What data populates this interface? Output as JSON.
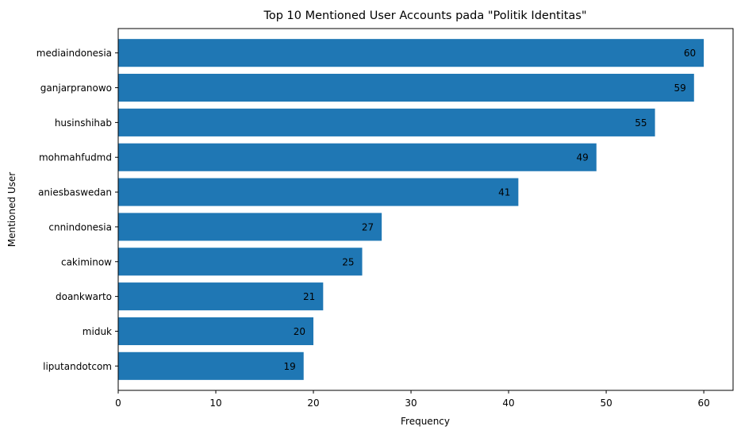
{
  "chart_data": {
    "type": "bar",
    "orientation": "horizontal",
    "title": "Top 10 Mentioned User Accounts pada \"Politik Identitas\"",
    "xlabel": "Frequency",
    "ylabel": "Mentioned User",
    "categories": [
      "mediaindonesia",
      "ganjarpranowo",
      "husinshihab",
      "mohmahfudmd",
      "aniesbaswedan",
      "cnnindonesia",
      "cakiminow",
      "doankwarto",
      "miduk",
      "liputandotcom"
    ],
    "values": [
      60,
      59,
      55,
      49,
      41,
      27,
      25,
      21,
      20,
      19
    ],
    "xlim": [
      0,
      63
    ],
    "xticks": [
      0,
      10,
      20,
      30,
      40,
      50,
      60
    ],
    "grid": false,
    "bar_color": "#1f77b4",
    "show_data_labels": true
  }
}
